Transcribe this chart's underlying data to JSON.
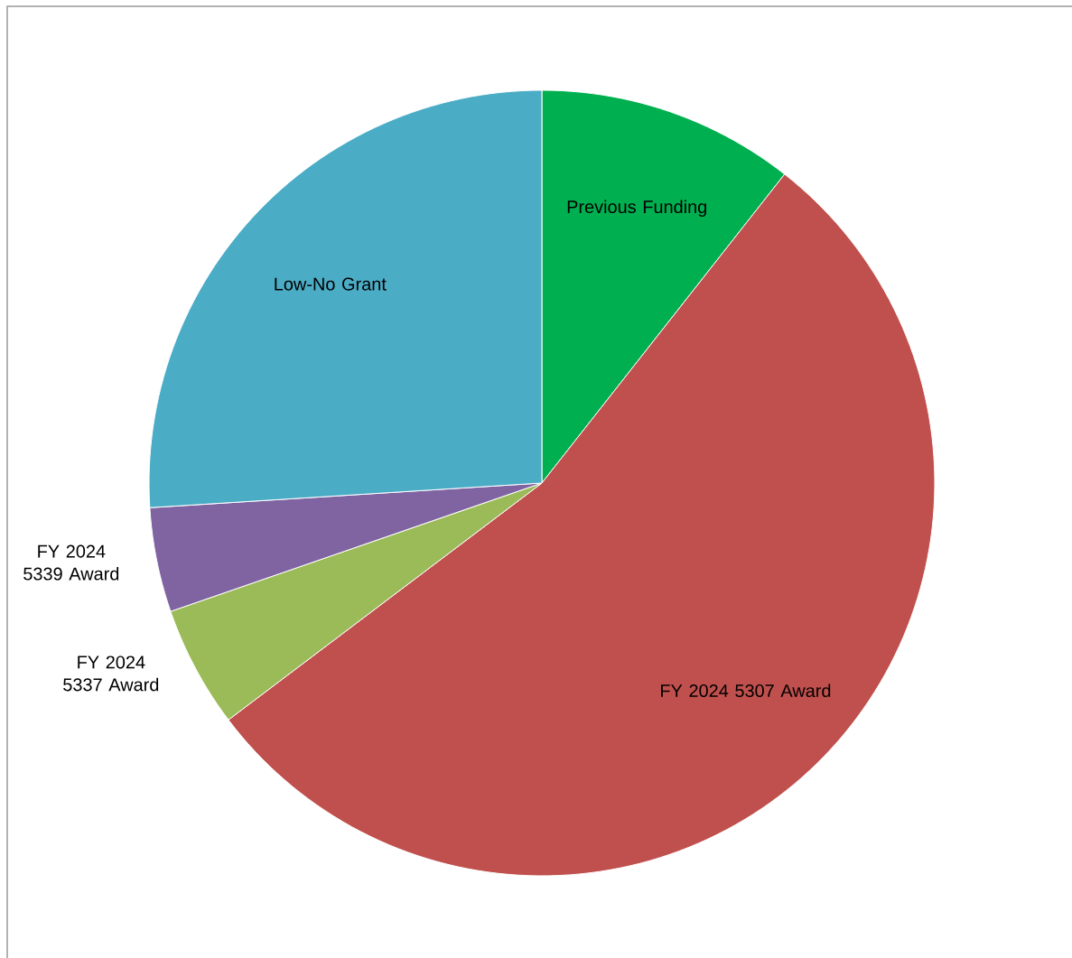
{
  "chart_data": {
    "type": "pie",
    "categories": [
      "Previous Funding",
      "FY 2024 5307 Award",
      "FY 2024 5337 Award",
      "FY 2024 5339 Award",
      "Low-No Grant"
    ],
    "values": [
      10.6,
      54.1,
      5.0,
      4.3,
      26.0
    ],
    "colors": [
      "#00b050",
      "#c0504d",
      "#9bbb59",
      "#8064a2",
      "#4bacc6"
    ]
  }
}
